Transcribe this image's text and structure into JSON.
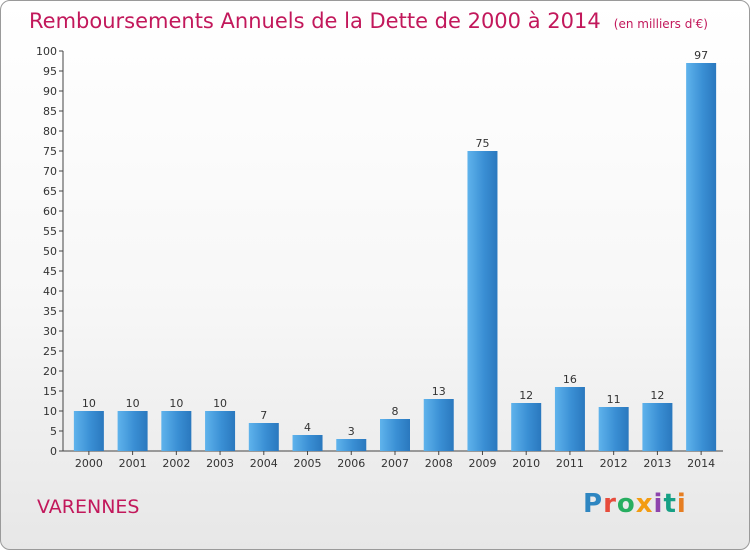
{
  "chart_data": {
    "type": "bar",
    "title": "Remboursements Annuels de la Dette de 2000 à 2014",
    "subtitle": "(en milliers d'€)",
    "categories": [
      "2000",
      "2001",
      "2002",
      "2003",
      "2004",
      "2005",
      "2006",
      "2007",
      "2008",
      "2009",
      "2010",
      "2011",
      "2012",
      "2013",
      "2014"
    ],
    "values": [
      10,
      10,
      10,
      10,
      7,
      4,
      3,
      8,
      13,
      75,
      12,
      16,
      11,
      12,
      97
    ],
    "ylim": [
      0,
      100
    ],
    "ytick_step": 5,
    "grid": false,
    "bar_color": "#3a8fd4"
  },
  "footer": {
    "place": "VARENNES",
    "logo_text": "Proxiti",
    "logo_colors": [
      "#2e86c1",
      "#e74c3c",
      "#27ae60",
      "#f39c12",
      "#8e44ad",
      "#16a085",
      "#e67e22"
    ]
  }
}
